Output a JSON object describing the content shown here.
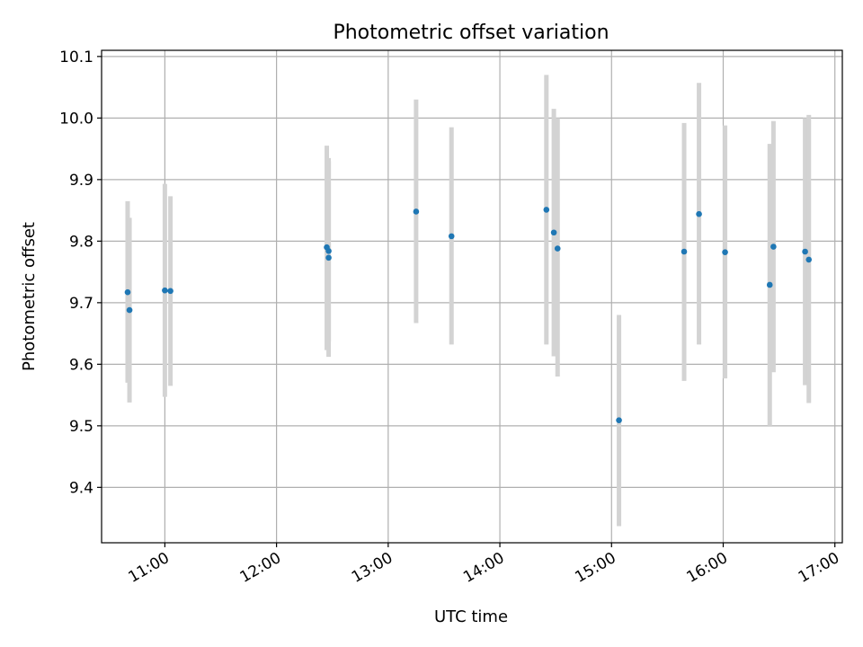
{
  "chart_data": {
    "type": "scatter",
    "title": "Photometric offset variation",
    "xlabel": "UTC time",
    "ylabel": "Photometric offset",
    "xlim": [
      "10:26",
      "17:04"
    ],
    "ylim": [
      9.31,
      10.11
    ],
    "yticks": [
      "9.4",
      "9.5",
      "9.6",
      "9.7",
      "9.8",
      "9.9",
      "10.0",
      "10.1"
    ],
    "xticks": [
      "11:00",
      "12:00",
      "13:00",
      "14:00",
      "15:00",
      "16:00",
      "17:00"
    ],
    "grid": true,
    "colors": {
      "marker": "#1f77b4",
      "errorbar": "#d3d3d3"
    },
    "points": [
      {
        "x": "10:40",
        "y": 9.717,
        "ylo": 9.57,
        "yhi": 9.865
      },
      {
        "x": "10:41",
        "y": 9.688,
        "ylo": 9.538,
        "yhi": 9.838
      },
      {
        "x": "11:00",
        "y": 9.72,
        "ylo": 9.547,
        "yhi": 9.893
      },
      {
        "x": "11:03",
        "y": 9.719,
        "ylo": 9.565,
        "yhi": 9.873
      },
      {
        "x": "12:27",
        "y": 9.79,
        "ylo": 9.623,
        "yhi": 9.955
      },
      {
        "x": "12:28",
        "y": 9.784,
        "ylo": 9.637,
        "yhi": 9.93
      },
      {
        "x": "12:28",
        "y": 9.773,
        "ylo": 9.612,
        "yhi": 9.935
      },
      {
        "x": "13:15",
        "y": 9.848,
        "ylo": 9.667,
        "yhi": 10.03
      },
      {
        "x": "13:34",
        "y": 9.808,
        "ylo": 9.632,
        "yhi": 9.985
      },
      {
        "x": "14:25",
        "y": 9.851,
        "ylo": 9.632,
        "yhi": 10.07
      },
      {
        "x": "14:29",
        "y": 9.814,
        "ylo": 9.613,
        "yhi": 10.015
      },
      {
        "x": "14:31",
        "y": 9.788,
        "ylo": 9.58,
        "yhi": 10.0
      },
      {
        "x": "15:04",
        "y": 9.509,
        "ylo": 9.337,
        "yhi": 9.68
      },
      {
        "x": "15:39",
        "y": 9.783,
        "ylo": 9.573,
        "yhi": 9.992
      },
      {
        "x": "15:47",
        "y": 9.844,
        "ylo": 9.632,
        "yhi": 10.057
      },
      {
        "x": "16:01",
        "y": 9.782,
        "ylo": 9.577,
        "yhi": 9.988
      },
      {
        "x": "16:25",
        "y": 9.729,
        "ylo": 9.5,
        "yhi": 9.958
      },
      {
        "x": "16:27",
        "y": 9.791,
        "ylo": 9.587,
        "yhi": 9.995
      },
      {
        "x": "16:44",
        "y": 9.783,
        "ylo": 9.566,
        "yhi": 10.0
      },
      {
        "x": "16:46",
        "y": 9.77,
        "ylo": 9.537,
        "yhi": 10.005
      }
    ]
  }
}
